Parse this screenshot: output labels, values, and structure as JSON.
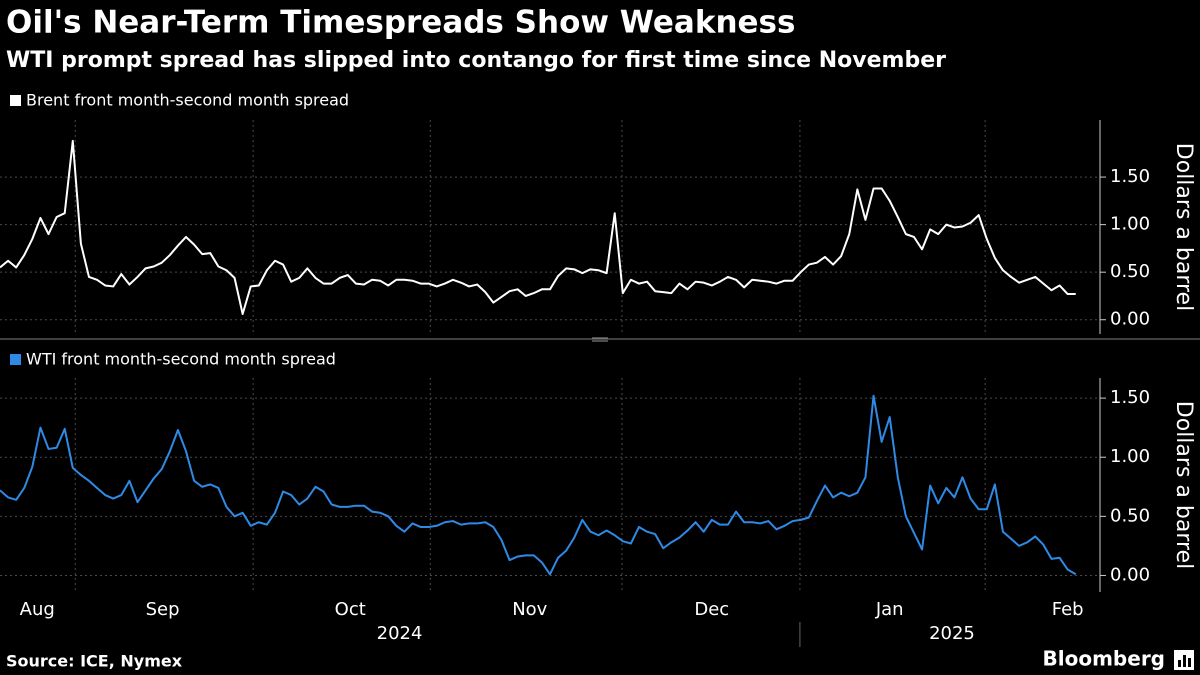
{
  "title": "Oil's Near-Term Timespreads Show Weakness",
  "subtitle": "WTI prompt spread has slipped into contango for first time since November",
  "source": "Source: ICE, Nymex",
  "brand": "Bloomberg",
  "chart_data": [
    {
      "type": "line",
      "series": [
        {
          "name": "Brent front month-second month spread",
          "color": "#ffffff",
          "values": [
            0.55,
            0.62,
            0.55,
            0.68,
            0.85,
            1.07,
            0.9,
            1.08,
            1.12,
            1.88,
            0.8,
            0.45,
            0.42,
            0.36,
            0.35,
            0.48,
            0.37,
            0.45,
            0.54,
            0.56,
            0.6,
            0.68,
            0.78,
            0.87,
            0.79,
            0.69,
            0.7,
            0.56,
            0.52,
            0.44,
            0.06,
            0.35,
            0.36,
            0.52,
            0.62,
            0.58,
            0.4,
            0.44,
            0.54,
            0.44,
            0.38,
            0.38,
            0.44,
            0.47,
            0.38,
            0.37,
            0.42,
            0.41,
            0.36,
            0.42,
            0.42,
            0.41,
            0.38,
            0.38,
            0.35,
            0.38,
            0.42,
            0.39,
            0.35,
            0.37,
            0.29,
            0.18,
            0.24,
            0.3,
            0.32,
            0.25,
            0.28,
            0.32,
            0.32,
            0.46,
            0.54,
            0.53,
            0.49,
            0.53,
            0.52,
            0.49,
            1.12,
            0.28,
            0.42,
            0.38,
            0.4,
            0.3,
            0.29,
            0.28,
            0.38,
            0.32,
            0.4,
            0.39,
            0.36,
            0.4,
            0.45,
            0.42,
            0.34,
            0.42,
            0.41,
            0.4,
            0.38,
            0.41,
            0.41,
            0.5,
            0.58,
            0.6,
            0.66,
            0.58,
            0.67,
            0.9,
            1.37,
            1.05,
            1.38,
            1.38,
            1.25,
            1.08,
            0.9,
            0.87,
            0.74,
            0.95,
            0.9,
            1.0,
            0.97,
            0.98,
            1.02,
            1.1,
            0.85,
            0.65,
            0.52,
            0.45,
            0.39,
            0.42,
            0.45,
            0.38,
            0.31,
            0.36,
            0.27,
            0.27
          ]
        }
      ],
      "ylabel": "Dollars a barrel",
      "xlim": [
        0,
        136
      ],
      "xgrid": [
        9.3,
        31.3,
        53.2,
        76.9,
        98.9,
        121.8
      ],
      "ylim": [
        -0.15,
        2.1
      ],
      "yticks": [
        {
          "value": 0,
          "label": "0.00"
        },
        {
          "value": 0.5,
          "label": "0.50"
        },
        {
          "value": 1,
          "label": "1.00"
        },
        {
          "value": 1.5,
          "label": "1.50"
        }
      ],
      "grid": true
    },
    {
      "type": "line",
      "series": [
        {
          "name": "WTI front month-second month spread",
          "color": "#2f8ae6",
          "values": [
            0.72,
            0.66,
            0.64,
            0.74,
            0.92,
            1.25,
            1.07,
            1.08,
            1.24,
            0.91,
            0.85,
            0.8,
            0.74,
            0.68,
            0.65,
            0.68,
            0.8,
            0.62,
            0.72,
            0.82,
            0.9,
            1.05,
            1.23,
            1.05,
            0.8,
            0.75,
            0.77,
            0.74,
            0.58,
            0.5,
            0.53,
            0.42,
            0.45,
            0.43,
            0.53,
            0.71,
            0.68,
            0.6,
            0.65,
            0.75,
            0.71,
            0.6,
            0.58,
            0.58,
            0.59,
            0.59,
            0.54,
            0.53,
            0.5,
            0.42,
            0.37,
            0.44,
            0.41,
            0.41,
            0.42,
            0.45,
            0.46,
            0.43,
            0.44,
            0.44,
            0.45,
            0.41,
            0.3,
            0.13,
            0.16,
            0.17,
            0.17,
            0.11,
            0.01,
            0.15,
            0.21,
            0.32,
            0.47,
            0.37,
            0.34,
            0.38,
            0.34,
            0.29,
            0.27,
            0.41,
            0.37,
            0.35,
            0.23,
            0.28,
            0.32,
            0.38,
            0.45,
            0.37,
            0.47,
            0.43,
            0.43,
            0.54,
            0.45,
            0.45,
            0.44,
            0.46,
            0.39,
            0.42,
            0.46,
            0.47,
            0.49,
            0.63,
            0.76,
            0.66,
            0.7,
            0.67,
            0.7,
            0.83,
            1.52,
            1.13,
            1.34,
            0.83,
            0.5,
            0.36,
            0.22,
            0.76,
            0.61,
            0.74,
            0.66,
            0.83,
            0.65,
            0.56,
            0.56,
            0.77,
            0.37,
            0.31,
            0.25,
            0.28,
            0.33,
            0.26,
            0.14,
            0.15,
            0.05,
            0.01
          ]
        }
      ],
      "ylabel": "Dollars a barrel",
      "xlim": [
        0,
        136
      ],
      "xgrid": [
        9.3,
        31.3,
        53.2,
        76.9,
        98.9,
        121.8
      ],
      "xticks": [
        {
          "value": 4.6,
          "label": "Aug"
        },
        {
          "value": 20.1,
          "label": "Sep"
        },
        {
          "value": 43.3,
          "label": "Oct"
        },
        {
          "value": 65.5,
          "label": "Nov"
        },
        {
          "value": 88,
          "label": "Dec"
        },
        {
          "value": 110,
          "label": "Jan"
        },
        {
          "value": 132,
          "label": "Feb"
        }
      ],
      "xgroups": [
        {
          "value": 49.4,
          "label": "2024"
        },
        {
          "value": 117.7,
          "label": "2025"
        }
      ],
      "xgroup_dividers": [
        98.9
      ],
      "ylim": [
        -0.14,
        1.67
      ],
      "yticks": [
        {
          "value": 0,
          "label": "0.00"
        },
        {
          "value": 0.5,
          "label": "0.50"
        },
        {
          "value": 1,
          "label": "1.00"
        },
        {
          "value": 1.5,
          "label": "1.50"
        }
      ],
      "grid": true
    }
  ]
}
